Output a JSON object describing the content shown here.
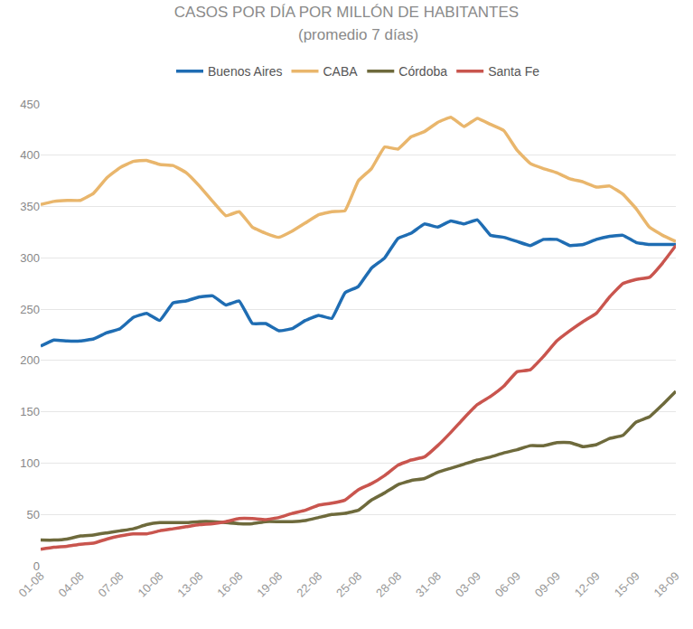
{
  "chart_data": {
    "type": "line",
    "title": "CASOS POR DÍA POR MILLÓN DE HABITANTES",
    "subtitle": "(promedio 7 días)",
    "categories": [
      "01-08",
      null,
      null,
      "04-08",
      null,
      null,
      "07-08",
      null,
      null,
      "10-08",
      null,
      null,
      "13-08",
      null,
      null,
      "16-08",
      null,
      null,
      "19-08",
      null,
      null,
      "22-08",
      null,
      null,
      "25-08",
      null,
      null,
      "28-08",
      null,
      null,
      "31-08",
      null,
      null,
      "03-09",
      null,
      null,
      "06-09",
      null,
      null,
      "09-09",
      null,
      null,
      "12-09",
      null,
      null,
      "15-09",
      null,
      null,
      "18-09"
    ],
    "series": [
      {
        "name": "Buenos Aires",
        "color": "#1f6db3",
        "values": [
          214,
          220,
          219,
          219,
          221,
          227,
          231,
          242,
          246,
          239,
          256,
          258,
          262,
          263,
          254,
          258,
          236,
          236,
          229,
          231,
          239,
          244,
          241,
          266,
          272,
          290,
          300,
          319,
          324,
          333,
          330,
          336,
          333,
          337,
          322,
          320,
          316,
          312,
          318,
          318,
          312,
          313,
          318,
          321,
          322,
          315,
          313,
          313,
          313
        ]
      },
      {
        "name": "CABA",
        "color": "#e9b66c",
        "values": [
          352,
          355,
          356,
          356,
          363,
          378,
          388,
          394,
          395,
          391,
          390,
          383,
          370,
          355,
          341,
          345,
          330,
          324,
          320,
          326,
          334,
          342,
          345,
          346,
          375,
          387,
          408,
          406,
          418,
          423,
          432,
          437,
          428,
          436,
          430,
          424,
          405,
          392,
          387,
          383,
          377,
          374,
          369,
          370,
          362,
          348,
          330,
          322,
          316
        ]
      },
      {
        "name": "Córdoba",
        "color": "#6e6a3c",
        "values": [
          25,
          25,
          26,
          29,
          30,
          32,
          34,
          36,
          40,
          42,
          42,
          42,
          43,
          43,
          42,
          41,
          41,
          43,
          43,
          43,
          44,
          47,
          50,
          51,
          54,
          64,
          71,
          79,
          83,
          85,
          91,
          95,
          99,
          103,
          106,
          110,
          113,
          117,
          117,
          120,
          120,
          116,
          118,
          124,
          127,
          140,
          145,
          157,
          170
        ]
      },
      {
        "name": "Santa Fe",
        "color": "#c9554e",
        "values": [
          16,
          18,
          19,
          21,
          22,
          26,
          29,
          31,
          31,
          34,
          36,
          38,
          40,
          41,
          43,
          46,
          46,
          45,
          47,
          51,
          54,
          59,
          61,
          64,
          74,
          80,
          88,
          98,
          103,
          106,
          117,
          130,
          144,
          157,
          165,
          175,
          189,
          191,
          204,
          219,
          229,
          238,
          246,
          262,
          275,
          279,
          281,
          295,
          312
        ]
      }
    ],
    "ylim": [
      0,
      450
    ],
    "yticks": [
      0,
      50,
      100,
      150,
      200,
      250,
      300,
      350,
      400,
      450
    ],
    "grid": true,
    "legend": "top"
  }
}
